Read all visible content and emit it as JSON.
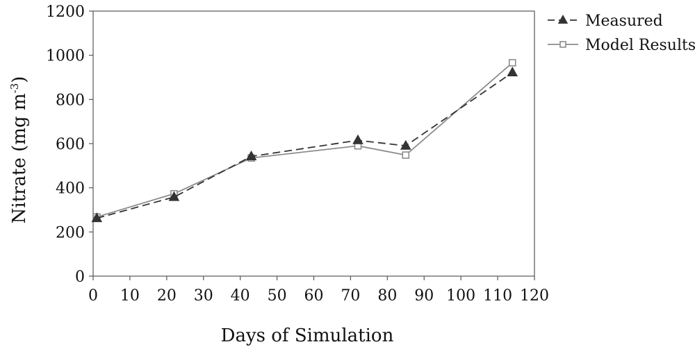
{
  "chart_data": {
    "type": "line",
    "title": "",
    "xlabel": "Days of Simulation",
    "ylabel": "Nitrate (mg m",
    "ylabel_sup": "-3",
    "ylabel_close": ")",
    "xlim": [
      0,
      120
    ],
    "ylim": [
      0,
      1200
    ],
    "xticks": [
      "0",
      "10",
      "20",
      "30",
      "40",
      "50",
      "60",
      "70",
      "80",
      "90",
      "100",
      "110",
      "120"
    ],
    "yticks": [
      "0",
      "200",
      "400",
      "600",
      "800",
      "1000",
      "1200"
    ],
    "grid": false,
    "legend_position": "top-right",
    "series": [
      {
        "name": "Measured",
        "color": "#333333",
        "line": "dashed",
        "marker": "filled-triangle",
        "x": [
          1,
          22,
          43,
          72,
          85,
          114
        ],
        "y": [
          262,
          358,
          542,
          615,
          590,
          922
        ]
      },
      {
        "name": "Model Results",
        "color": "#8c8c8c",
        "line": "solid",
        "marker": "open-square",
        "x": [
          1,
          22,
          43,
          72,
          85,
          114
        ],
        "y": [
          268,
          373,
          535,
          590,
          548,
          966
        ]
      }
    ]
  }
}
